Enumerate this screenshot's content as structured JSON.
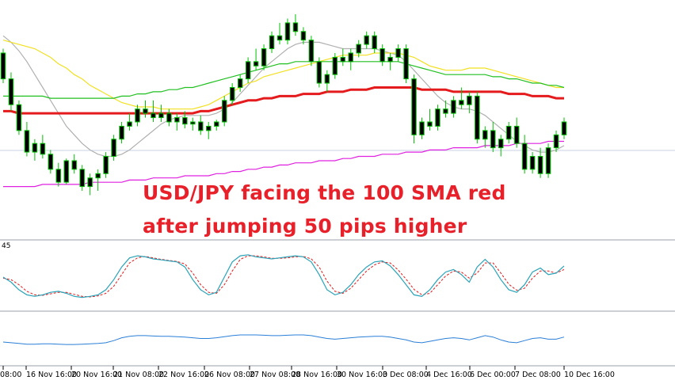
{
  "headline": {
    "line1": "USD/JPY facing the 100 SMA red",
    "line2": "after jumping 50 pips higher"
  },
  "stochastic_scale_label": "45",
  "chart_data": {
    "type": "candlestick",
    "title": "",
    "xlabel": "",
    "ylabel": "",
    "x_tick_labels": [
      "08:00",
      "16 Nov 16:00",
      "20 Nov 16:00",
      "21 Nov 08:00",
      "22 Nov 16:00",
      "26 Nov 08:00",
      "27 Nov 08:00",
      "28 Nov 16:00",
      "30 Nov 16:00",
      "3 Dec 08:00",
      "4 Dec 16:00",
      "6 Dec 00:00",
      "7 Dec 08:00",
      "10 Dec 16:00"
    ],
    "price_ylim": [
      0,
      100
    ],
    "candles": [
      [
        82,
        84,
        68,
        70
      ],
      [
        70,
        73,
        55,
        58
      ],
      [
        58,
        60,
        44,
        46
      ],
      [
        46,
        50,
        34,
        36
      ],
      [
        36,
        42,
        32,
        40
      ],
      [
        40,
        44,
        33,
        35
      ],
      [
        35,
        37,
        26,
        28
      ],
      [
        28,
        31,
        20,
        22
      ],
      [
        22,
        33,
        21,
        32
      ],
      [
        32,
        35,
        26,
        28
      ],
      [
        28,
        30,
        18,
        20
      ],
      [
        20,
        26,
        16,
        24
      ],
      [
        24,
        28,
        18,
        26
      ],
      [
        26,
        36,
        24,
        34
      ],
      [
        34,
        44,
        32,
        42
      ],
      [
        42,
        50,
        40,
        48
      ],
      [
        48,
        54,
        46,
        50
      ],
      [
        50,
        58,
        48,
        56
      ],
      [
        56,
        60,
        52,
        54
      ],
      [
        54,
        60,
        50,
        52
      ],
      [
        52,
        58,
        50,
        54
      ],
      [
        54,
        56,
        48,
        50
      ],
      [
        50,
        54,
        46,
        52
      ],
      [
        52,
        55,
        47,
        49
      ],
      [
        49,
        52,
        46,
        50
      ],
      [
        50,
        53,
        44,
        46
      ],
      [
        46,
        50,
        42,
        48
      ],
      [
        48,
        51,
        46,
        50
      ],
      [
        50,
        62,
        48,
        60
      ],
      [
        60,
        68,
        58,
        66
      ],
      [
        66,
        72,
        64,
        70
      ],
      [
        70,
        80,
        68,
        78
      ],
      [
        78,
        84,
        74,
        76
      ],
      [
        76,
        86,
        74,
        84
      ],
      [
        84,
        92,
        82,
        90
      ],
      [
        90,
        96,
        86,
        88
      ],
      [
        88,
        98,
        86,
        96
      ],
      [
        96,
        100,
        90,
        92
      ],
      [
        92,
        94,
        86,
        88
      ],
      [
        88,
        90,
        76,
        78
      ],
      [
        78,
        80,
        66,
        68
      ],
      [
        68,
        74,
        64,
        72
      ],
      [
        72,
        82,
        70,
        80
      ],
      [
        80,
        84,
        76,
        78
      ],
      [
        78,
        84,
        74,
        82
      ],
      [
        82,
        88,
        80,
        86
      ],
      [
        86,
        92,
        84,
        90
      ],
      [
        90,
        92,
        82,
        84
      ],
      [
        84,
        86,
        76,
        78
      ],
      [
        78,
        82,
        74,
        80
      ],
      [
        80,
        86,
        78,
        84
      ],
      [
        84,
        86,
        68,
        70
      ],
      [
        70,
        72,
        40,
        44
      ],
      [
        44,
        52,
        42,
        50
      ],
      [
        50,
        56,
        46,
        48
      ],
      [
        48,
        58,
        46,
        56
      ],
      [
        56,
        60,
        52,
        54
      ],
      [
        54,
        62,
        52,
        60
      ],
      [
        60,
        66,
        56,
        58
      ],
      [
        58,
        64,
        54,
        62
      ],
      [
        62,
        64,
        40,
        42
      ],
      [
        42,
        48,
        38,
        46
      ],
      [
        46,
        50,
        36,
        38
      ],
      [
        38,
        44,
        34,
        42
      ],
      [
        42,
        50,
        40,
        48
      ],
      [
        48,
        52,
        38,
        40
      ],
      [
        40,
        44,
        26,
        28
      ],
      [
        28,
        36,
        26,
        34
      ],
      [
        34,
        38,
        24,
        26
      ],
      [
        26,
        40,
        24,
        38
      ],
      [
        38,
        46,
        36,
        44
      ],
      [
        44,
        52,
        42,
        50
      ]
    ],
    "series": [
      {
        "name": "100 SMA",
        "color": "#e41a1c",
        "values": [
          55,
          55,
          54,
          54,
          54,
          54,
          54,
          54,
          54,
          54,
          54,
          54,
          54,
          54,
          54,
          54,
          54,
          54,
          54,
          54,
          54,
          54,
          54,
          54,
          54,
          55,
          55,
          56,
          57,
          58,
          59,
          60,
          60,
          61,
          61,
          62,
          62,
          62,
          63,
          63,
          63,
          64,
          64,
          64,
          65,
          65,
          65,
          66,
          66,
          66,
          66,
          66,
          66,
          65,
          65,
          65,
          65,
          64,
          64,
          64,
          64,
          64,
          64,
          64,
          63,
          63,
          63,
          62,
          62,
          62,
          61,
          61
        ]
      },
      {
        "name": "",
        "color": "#f2e020",
        "values": [
          88,
          87,
          86,
          85,
          84,
          82,
          80,
          77,
          75,
          72,
          70,
          67,
          65,
          63,
          61,
          59,
          58,
          57,
          57,
          57,
          56,
          56,
          56,
          56,
          56,
          57,
          58,
          60,
          62,
          64,
          66,
          68,
          69,
          71,
          72,
          73,
          74,
          75,
          76,
          77,
          78,
          79,
          80,
          81,
          81,
          81,
          81,
          82,
          82,
          82,
          82,
          81,
          80,
          78,
          76,
          75,
          74,
          74,
          74,
          75,
          75,
          75,
          74,
          73,
          72,
          71,
          70,
          69,
          68,
          67,
          66,
          66
        ]
      },
      {
        "name": "",
        "color": "#20c020",
        "values": [
          62,
          62,
          62,
          62,
          62,
          62,
          61,
          61,
          61,
          61,
          61,
          61,
          61,
          61,
          61,
          62,
          62,
          63,
          63,
          64,
          64,
          65,
          65,
          66,
          66,
          67,
          68,
          69,
          70,
          71,
          72,
          73,
          74,
          75,
          76,
          77,
          77,
          78,
          78,
          78,
          78,
          78,
          78,
          78,
          78,
          78,
          78,
          78,
          78,
          78,
          78,
          77,
          76,
          75,
          74,
          73,
          72,
          72,
          72,
          72,
          72,
          72,
          71,
          71,
          70,
          70,
          69,
          68,
          68,
          67,
          67,
          66
        ]
      },
      {
        "name": "",
        "color": "#b0b0b0",
        "values": [
          90,
          87,
          83,
          78,
          72,
          66,
          60,
          54,
          48,
          44,
          40,
          37,
          35,
          34,
          34,
          35,
          37,
          40,
          43,
          46,
          49,
          51,
          52,
          53,
          53,
          53,
          53,
          54,
          56,
          59,
          63,
          67,
          71,
          75,
          78,
          81,
          84,
          86,
          87,
          87,
          87,
          86,
          85,
          84,
          84,
          84,
          84,
          84,
          83,
          82,
          81,
          78,
          74,
          70,
          66,
          62,
          59,
          57,
          56,
          56,
          55,
          53,
          50,
          47,
          44,
          41,
          39,
          37,
          36,
          36,
          37,
          39
        ]
      },
      {
        "name": "",
        "color": "#e020e0",
        "values": [
          20,
          20,
          20,
          20,
          20,
          21,
          21,
          21,
          21,
          21,
          21,
          22,
          22,
          22,
          22,
          22,
          23,
          23,
          23,
          24,
          24,
          24,
          24,
          25,
          25,
          25,
          25,
          26,
          26,
          27,
          27,
          28,
          28,
          29,
          29,
          30,
          30,
          31,
          31,
          31,
          32,
          32,
          32,
          33,
          33,
          34,
          34,
          34,
          35,
          35,
          35,
          36,
          36,
          36,
          37,
          37,
          37,
          38,
          38,
          38,
          38,
          39,
          39,
          39,
          39,
          40,
          40,
          40,
          40,
          41,
          41,
          41
        ]
      }
    ],
    "stochastic": {
      "ylim": [
        0,
        100
      ],
      "main_color": "#2aa3b8",
      "signal_color": "#e41a1c",
      "main": [
        50,
        40,
        25,
        15,
        12,
        15,
        20,
        22,
        18,
        12,
        10,
        12,
        15,
        25,
        45,
        70,
        88,
        92,
        90,
        86,
        84,
        82,
        80,
        70,
        45,
        25,
        15,
        20,
        50,
        80,
        92,
        94,
        90,
        88,
        86,
        88,
        90,
        92,
        90,
        80,
        55,
        25,
        15,
        20,
        35,
        55,
        70,
        80,
        82,
        72,
        55,
        35,
        15,
        12,
        25,
        45,
        60,
        65,
        55,
        40,
        70,
        85,
        70,
        45,
        25,
        20,
        35,
        60,
        68,
        55,
        58,
        72
      ],
      "signal": [
        48,
        45,
        35,
        22,
        15,
        14,
        17,
        20,
        20,
        16,
        12,
        11,
        13,
        18,
        32,
        55,
        78,
        88,
        91,
        88,
        85,
        83,
        81,
        76,
        58,
        35,
        20,
        18,
        35,
        62,
        85,
        92,
        92,
        90,
        87,
        87,
        88,
        90,
        91,
        86,
        70,
        42,
        22,
        18,
        28,
        45,
        62,
        74,
        80,
        78,
        64,
        46,
        26,
        15,
        18,
        35,
        52,
        62,
        60,
        48,
        58,
        78,
        78,
        58,
        36,
        24,
        28,
        48,
        62,
        62,
        58,
        65
      ]
    },
    "lower_indicator": {
      "ylim": [
        0,
        100
      ],
      "color": "#2a7fd8",
      "values": [
        40,
        38,
        36,
        34,
        34,
        35,
        35,
        34,
        33,
        33,
        34,
        35,
        36,
        38,
        44,
        52,
        56,
        58,
        58,
        57,
        56,
        56,
        55,
        54,
        52,
        50,
        50,
        52,
        55,
        58,
        60,
        60,
        60,
        59,
        58,
        58,
        59,
        60,
        60,
        58,
        54,
        50,
        48,
        50,
        52,
        54,
        55,
        56,
        56,
        54,
        50,
        46,
        40,
        38,
        42,
        46,
        50,
        52,
        50,
        46,
        52,
        58,
        54,
        46,
        40,
        38,
        44,
        50,
        52,
        48,
        48,
        54
      ]
    }
  }
}
